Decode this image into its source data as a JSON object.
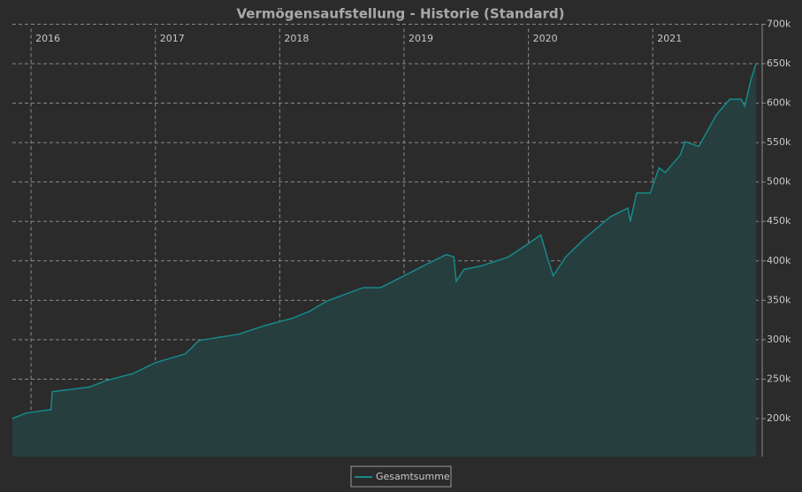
{
  "chart_data": {
    "type": "area",
    "title": "Vermögensaufstellung - Historie (Standard)",
    "x": [
      2015.85,
      2015.96,
      2016.14,
      2016.16,
      2016.17,
      2016.47,
      2016.6,
      2016.82,
      2017.0,
      2017.24,
      2017.35,
      2017.67,
      2017.88,
      2018.1,
      2018.24,
      2018.38,
      2018.67,
      2018.81,
      2019.0,
      2019.16,
      2019.34,
      2019.4,
      2019.42,
      2019.48,
      2019.63,
      2019.84,
      2020.0,
      2020.1,
      2020.15,
      2020.2,
      2020.3,
      2020.45,
      2020.66,
      2020.8,
      2020.82,
      2020.87,
      2020.98,
      2021.05,
      2021.1,
      2021.22,
      2021.26,
      2021.37,
      2021.51,
      2021.62,
      2021.71,
      2021.74,
      2021.79,
      2021.83
    ],
    "series": [
      {
        "name": "Gesamtsumme",
        "color": "#17898a",
        "fill": "#263e3e",
        "values": [
          200000,
          207000,
          211000,
          211000,
          234000,
          240000,
          248000,
          257000,
          271000,
          282000,
          299000,
          307000,
          318000,
          327000,
          336000,
          349000,
          366000,
          366000,
          381000,
          394000,
          408000,
          405000,
          374000,
          389000,
          394000,
          405000,
          422000,
          433000,
          405000,
          381000,
          405000,
          428000,
          456000,
          467000,
          450000,
          486000,
          486000,
          518000,
          512000,
          534000,
          551000,
          545000,
          585000,
          605000,
          605000,
          596000,
          630000,
          650000
        ]
      }
    ],
    "xlim": [
      2015.85,
      2021.88
    ],
    "xticks": [
      2016,
      2017,
      2018,
      2019,
      2020,
      2021
    ],
    "ylim": [
      151800,
      700000
    ],
    "yticks": [
      {
        "value": 200000,
        "label": "200k"
      },
      {
        "value": 250000,
        "label": "250k"
      },
      {
        "value": 300000,
        "label": "300k"
      },
      {
        "value": 350000,
        "label": "350k"
      },
      {
        "value": 400000,
        "label": "400k"
      },
      {
        "value": 450000,
        "label": "450k"
      },
      {
        "value": 500000,
        "label": "500k"
      },
      {
        "value": 550000,
        "label": "550k"
      },
      {
        "value": 600000,
        "label": "600k"
      },
      {
        "value": 650000,
        "label": "650k"
      },
      {
        "value": 700000,
        "label": "700k"
      }
    ],
    "grid": true
  }
}
